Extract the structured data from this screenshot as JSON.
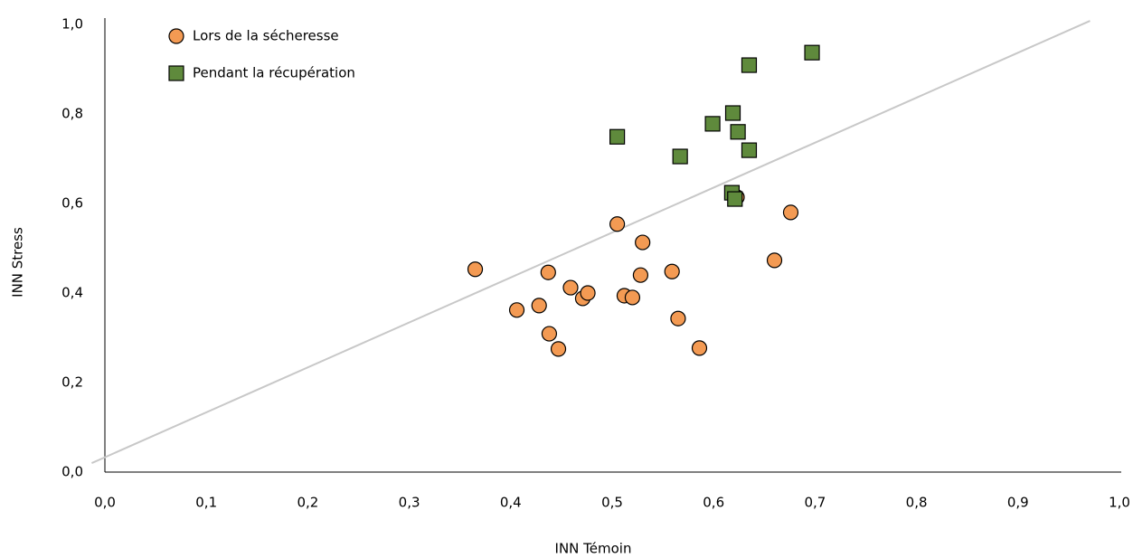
{
  "chart_data": {
    "type": "scatter",
    "x_label": "INN Témoin",
    "y_label": "INN Stress",
    "xlim": [
      0,
      1
    ],
    "ylim": [
      0,
      1
    ],
    "xticks": [
      {
        "value": 0,
        "label": "0,0"
      },
      {
        "value": 0.1,
        "label": "0,1"
      },
      {
        "value": 0.2,
        "label": "0,2"
      },
      {
        "value": 0.3,
        "label": "0,3"
      },
      {
        "value": 0.4,
        "label": "0,4"
      },
      {
        "value": 0.5,
        "label": "0,5"
      },
      {
        "value": 0.6,
        "label": "0,6"
      },
      {
        "value": 0.7,
        "label": "0,7"
      },
      {
        "value": 0.8,
        "label": "0,8"
      },
      {
        "value": 0.9,
        "label": "0,9"
      },
      {
        "value": 1,
        "label": "1,0"
      }
    ],
    "yticks": [
      {
        "value": 0,
        "label": "0,0"
      },
      {
        "value": 0.2,
        "label": "0,2"
      },
      {
        "value": 0.4,
        "label": "0,4"
      },
      {
        "value": 0.6,
        "label": "0,6"
      },
      {
        "value": 0.8,
        "label": "0,8"
      },
      {
        "value": 1,
        "label": "1,0"
      }
    ],
    "grid": false,
    "legend": "upper left",
    "series": [
      {
        "name": "Lors de la sécheresse",
        "color": "#f39a53",
        "marker": "circle",
        "x": [
          0.365,
          0.406,
          0.428,
          0.437,
          0.438,
          0.447,
          0.459,
          0.471,
          0.476,
          0.505,
          0.512,
          0.52,
          0.528,
          0.53,
          0.559,
          0.565,
          0.586,
          0.623,
          0.66,
          0.676
        ],
        "values": [
          0.453,
          0.362,
          0.372,
          0.446,
          0.309,
          0.275,
          0.412,
          0.388,
          0.4,
          0.554,
          0.394,
          0.39,
          0.44,
          0.513,
          0.448,
          0.343,
          0.277,
          0.614,
          0.473,
          0.58
        ]
      },
      {
        "name": "Pendant la récupération",
        "color": "#5f8a3c",
        "marker": "square",
        "x": [
          0.505,
          0.567,
          0.599,
          0.619,
          0.624,
          0.635,
          0.635,
          0.618,
          0.621,
          0.697
        ],
        "values": [
          0.749,
          0.705,
          0.778,
          0.802,
          0.76,
          0.909,
          0.719,
          0.624,
          0.61,
          0.937
        ]
      }
    ],
    "reference_line": {
      "color": "#c8c8c8",
      "x": [
        -0.013,
        0.971
      ],
      "values": [
        0.02,
        1.008
      ]
    }
  }
}
